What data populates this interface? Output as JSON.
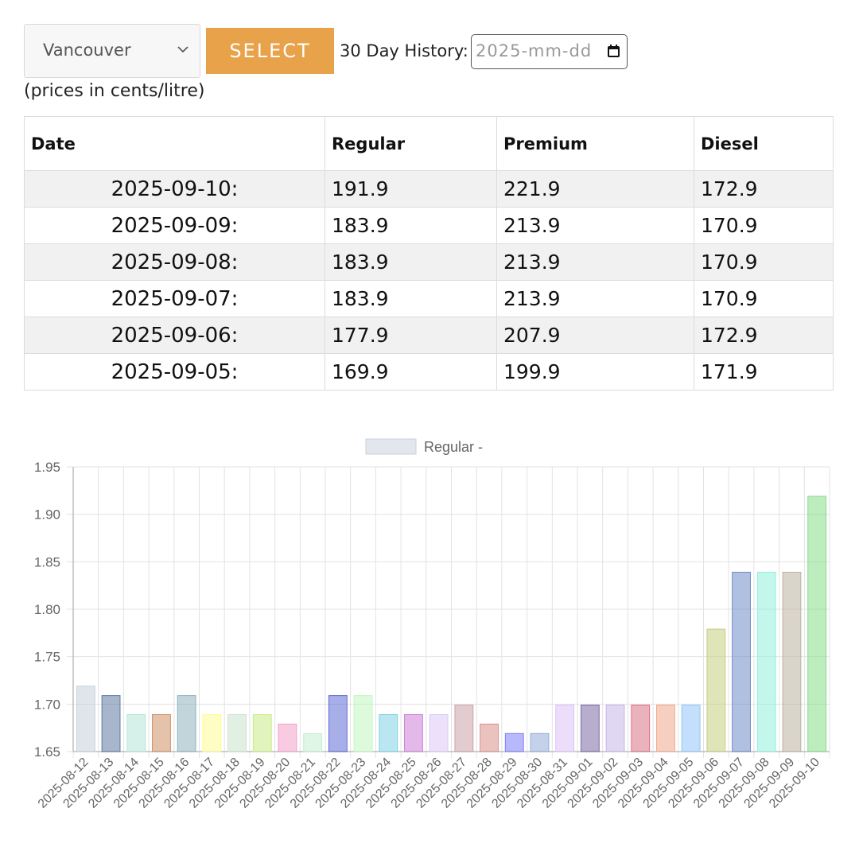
{
  "controls": {
    "city": "Vancouver",
    "select_label": "SELECT",
    "history_label": "30 Day History:",
    "date_placeholder": "2025-mm-dd"
  },
  "units_note": "(prices in cents/litre)",
  "table": {
    "headers": [
      "Date",
      "Regular",
      "Premium",
      "Diesel"
    ],
    "rows": [
      {
        "date": "2025-09-10:",
        "regular": "191.9",
        "premium": "221.9",
        "diesel": "172.9"
      },
      {
        "date": "2025-09-09:",
        "regular": "183.9",
        "premium": "213.9",
        "diesel": "170.9"
      },
      {
        "date": "2025-09-08:",
        "regular": "183.9",
        "premium": "213.9",
        "diesel": "170.9"
      },
      {
        "date": "2025-09-07:",
        "regular": "183.9",
        "premium": "213.9",
        "diesel": "170.9"
      },
      {
        "date": "2025-09-06:",
        "regular": "177.9",
        "premium": "207.9",
        "diesel": "172.9"
      },
      {
        "date": "2025-09-05:",
        "regular": "169.9",
        "premium": "199.9",
        "diesel": "171.9"
      }
    ]
  },
  "chart_data": {
    "type": "bar",
    "legend": "Regular -",
    "legend_position": "top",
    "grid": true,
    "ylim": [
      1.65,
      1.95
    ],
    "yticks": [
      "1.95",
      "1.90",
      "1.85",
      "1.80",
      "1.75",
      "1.70",
      "1.65"
    ],
    "categories": [
      "2025-08-12",
      "2025-08-13",
      "2025-08-14",
      "2025-08-15",
      "2025-08-16",
      "2025-08-17",
      "2025-08-18",
      "2025-08-19",
      "2025-08-20",
      "2025-08-21",
      "2025-08-22",
      "2025-08-23",
      "2025-08-24",
      "2025-08-25",
      "2025-08-26",
      "2025-08-27",
      "2025-08-28",
      "2025-08-29",
      "2025-08-30",
      "2025-08-31",
      "2025-09-01",
      "2025-09-02",
      "2025-09-03",
      "2025-09-04",
      "2025-09-05",
      "2025-09-06",
      "2025-09-07",
      "2025-09-08",
      "2025-09-09",
      "2025-09-10"
    ],
    "values": [
      1.719,
      1.709,
      1.689,
      1.689,
      1.709,
      1.689,
      1.689,
      1.689,
      1.679,
      1.669,
      1.709,
      1.709,
      1.689,
      1.689,
      1.689,
      1.699,
      1.679,
      1.669,
      1.669,
      1.699,
      1.699,
      1.699,
      1.699,
      1.699,
      1.699,
      1.779,
      1.839,
      1.839,
      1.839,
      1.919
    ],
    "colors": [
      "#c7d0dc",
      "#5f7aa3",
      "#b5e6d7",
      "#cf8f65",
      "#8eb2bd",
      "#fdfb93",
      "#cbe2cc",
      "#c9eb88",
      "#f2a0cb",
      "#c5edcf",
      "#5f6bd6",
      "#c3f6bf",
      "#7fd1e3",
      "#cd7fd8",
      "#dcc9f6",
      "#cca3a7",
      "#d8918b",
      "#7c7ff5",
      "#93acd8",
      "#ddc3f7",
      "#7c6aa3",
      "#c6b7e7",
      "#d97287",
      "#f1a88d",
      "#94c4f7",
      "#c6ce80",
      "#6f8cc9",
      "#91f1dc",
      "#bcb2a0",
      "#86dd8a"
    ]
  }
}
